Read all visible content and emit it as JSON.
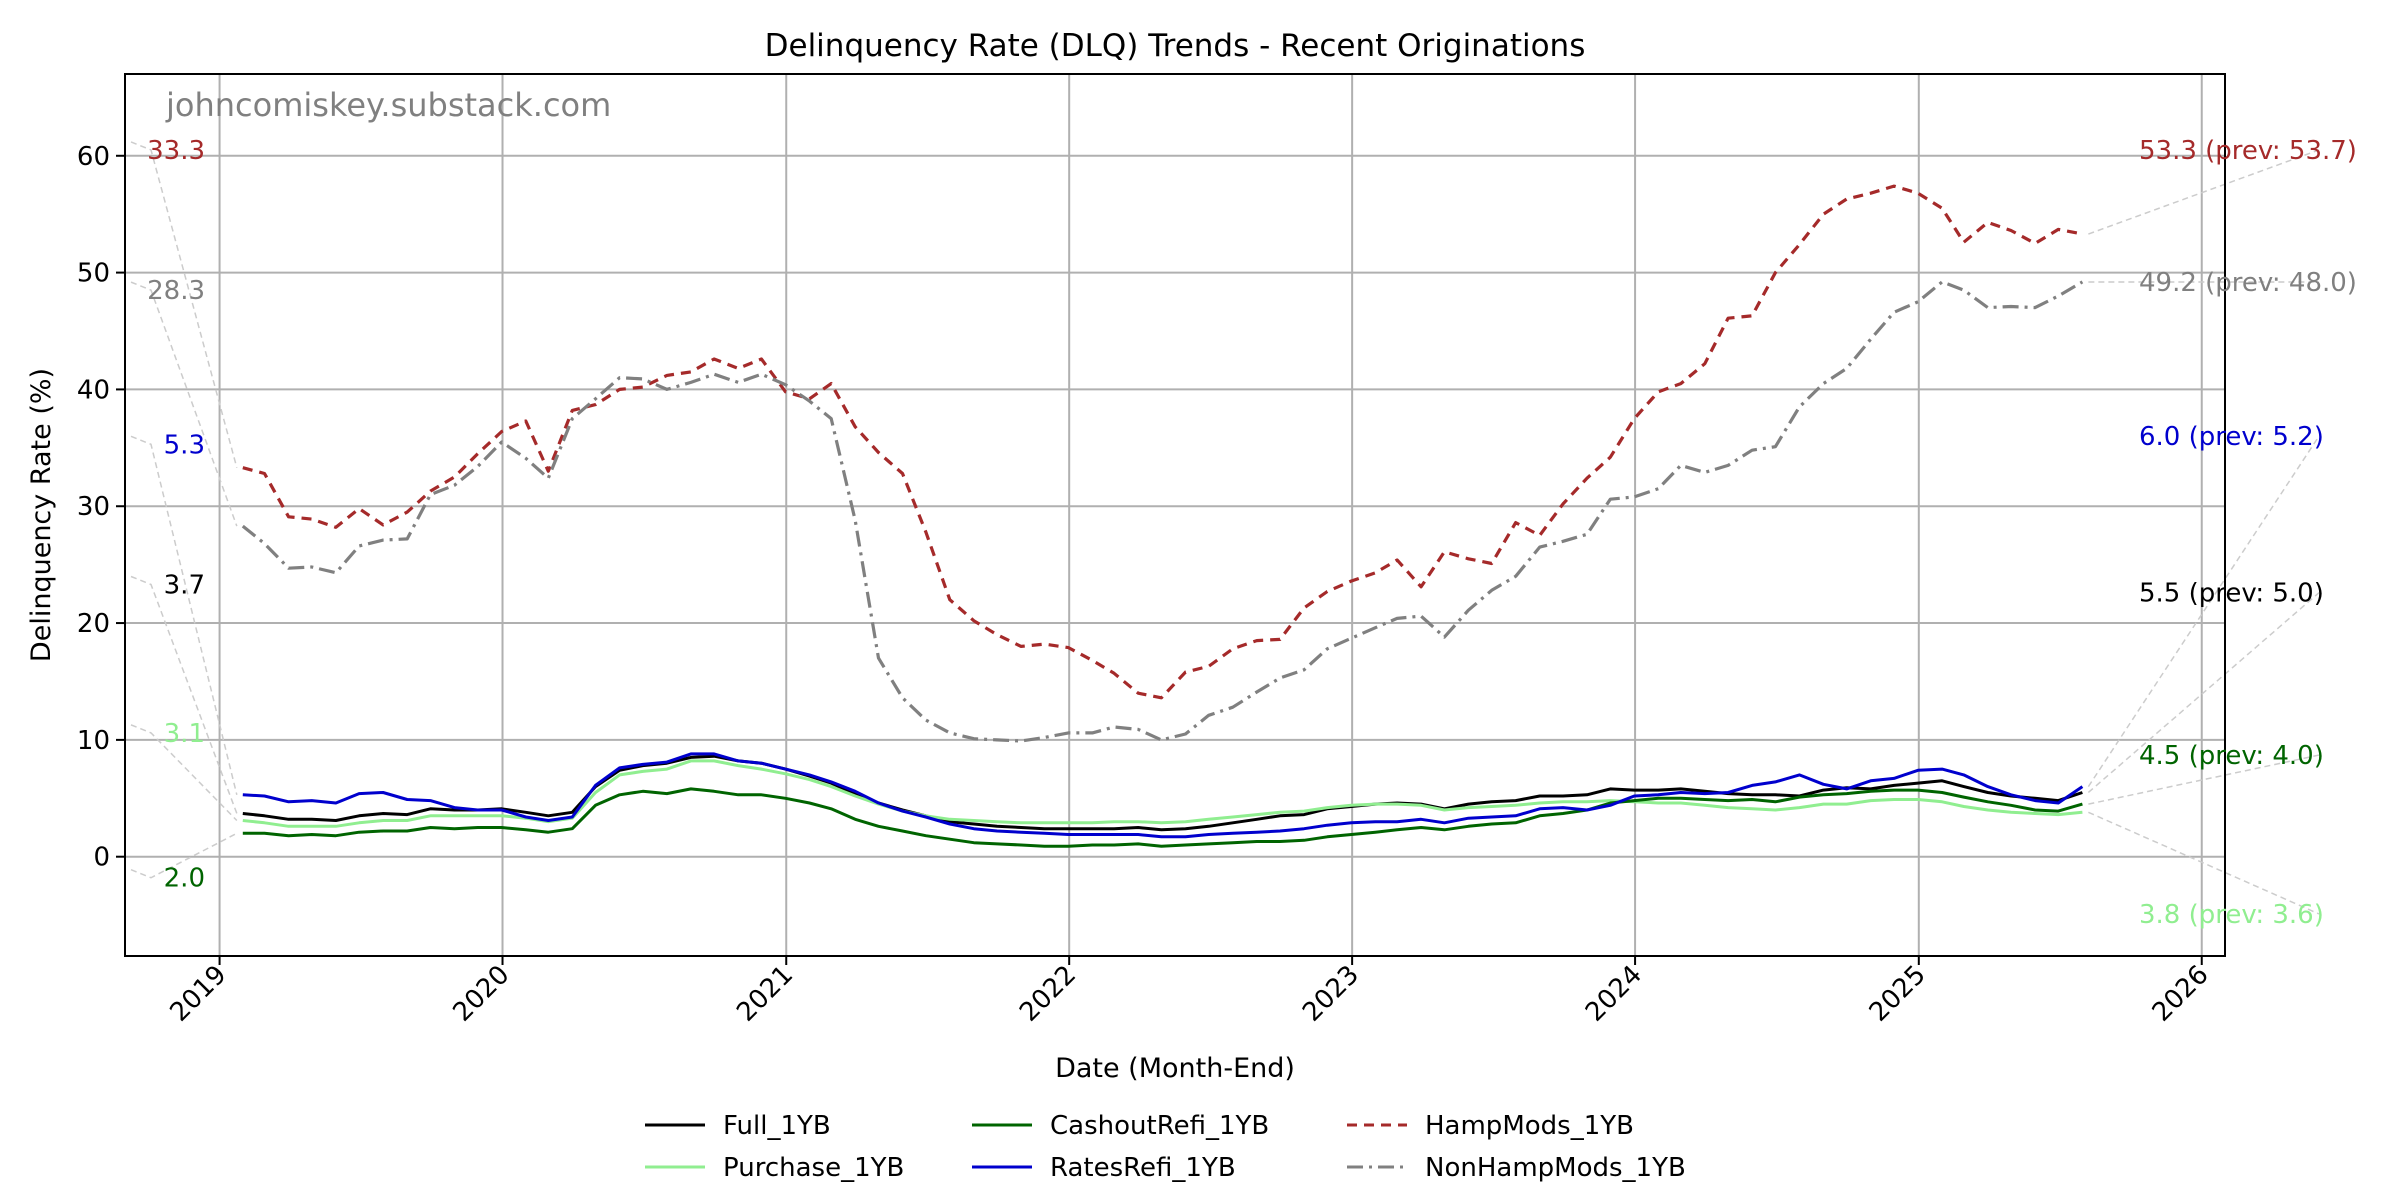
{
  "chart_data": {
    "type": "line",
    "title": "Delinquency Rate (DLQ) Trends - Recent Originations",
    "xlabel": "Date (Month-End)",
    "ylabel": "Delinquency Rate (%)",
    "watermark": "johncomiskey.substack.com",
    "xlim": [
      "2018-09-01",
      "2026-01-31"
    ],
    "ylim": [
      -8.5,
      67
    ],
    "x_ticks": [
      "2019",
      "2020",
      "2021",
      "2022",
      "2023",
      "2024",
      "2025",
      "2026"
    ],
    "y_ticks": [
      0,
      10,
      20,
      30,
      40,
      50,
      60
    ],
    "grid": true,
    "legend_placement": "below",
    "x": [
      "2019-01",
      "2019-02",
      "2019-03",
      "2019-04",
      "2019-05",
      "2019-06",
      "2019-07",
      "2019-08",
      "2019-09",
      "2019-10",
      "2019-11",
      "2019-12",
      "2020-01",
      "2020-02",
      "2020-03",
      "2020-04",
      "2020-05",
      "2020-06",
      "2020-07",
      "2020-08",
      "2020-09",
      "2020-10",
      "2020-11",
      "2020-12",
      "2021-01",
      "2021-02",
      "2021-03",
      "2021-04",
      "2021-05",
      "2021-06",
      "2021-07",
      "2021-08",
      "2021-09",
      "2021-10",
      "2021-11",
      "2021-12",
      "2022-01",
      "2022-02",
      "2022-03",
      "2022-04",
      "2022-05",
      "2022-06",
      "2022-07",
      "2022-08",
      "2022-09",
      "2022-10",
      "2022-11",
      "2022-12",
      "2023-01",
      "2023-02",
      "2023-03",
      "2023-04",
      "2023-05",
      "2023-06",
      "2023-07",
      "2023-08",
      "2023-09",
      "2023-10",
      "2023-11",
      "2023-12",
      "2024-01",
      "2024-02",
      "2024-03",
      "2024-04",
      "2024-05",
      "2024-06",
      "2024-07",
      "2024-08",
      "2024-09",
      "2024-10",
      "2024-11",
      "2024-12",
      "2025-01",
      "2025-02",
      "2025-03",
      "2025-04",
      "2025-05",
      "2025-06",
      "2025-07"
    ],
    "series": [
      {
        "name": "Full_1YB",
        "color": "#000000",
        "dash": "solid",
        "width": 3,
        "values": [
          3.7,
          3.5,
          3.2,
          3.2,
          3.1,
          3.5,
          3.7,
          3.6,
          4.1,
          4.0,
          4.0,
          4.1,
          3.8,
          3.5,
          3.8,
          6.0,
          7.4,
          7.8,
          8.0,
          8.5,
          8.6,
          8.2,
          8.0,
          7.5,
          6.9,
          6.3,
          5.4,
          4.6,
          4.0,
          3.5,
          3.0,
          2.8,
          2.6,
          2.5,
          2.4,
          2.4,
          2.4,
          2.4,
          2.5,
          2.3,
          2.4,
          2.6,
          2.9,
          3.2,
          3.5,
          3.6,
          4.1,
          4.3,
          4.5,
          4.6,
          4.5,
          4.1,
          4.5,
          4.7,
          4.8,
          5.2,
          5.2,
          5.3,
          5.8,
          5.7,
          5.7,
          5.8,
          5.6,
          5.4,
          5.3,
          5.3,
          5.2,
          5.7,
          5.9,
          5.8,
          6.1,
          6.3,
          6.5,
          6.0,
          5.5,
          5.2,
          5.0,
          4.8,
          5.5
        ],
        "start": "3.7",
        "end": "5.5 (prev: 5.0)",
        "start_y": 23.3,
        "end_y": 22.6
      },
      {
        "name": "Purchase_1YB",
        "color": "#90ee90",
        "dash": "solid",
        "width": 3,
        "values": [
          3.1,
          2.9,
          2.6,
          2.6,
          2.6,
          2.9,
          3.1,
          3.1,
          3.5,
          3.5,
          3.5,
          3.5,
          3.3,
          3.0,
          3.3,
          5.5,
          7.0,
          7.3,
          7.5,
          8.2,
          8.2,
          7.8,
          7.5,
          7.1,
          6.6,
          6.0,
          5.2,
          4.5,
          3.9,
          3.5,
          3.2,
          3.1,
          3.0,
          2.9,
          2.9,
          2.9,
          2.9,
          3.0,
          3.0,
          2.9,
          3.0,
          3.2,
          3.4,
          3.6,
          3.8,
          3.9,
          4.2,
          4.4,
          4.5,
          4.5,
          4.4,
          4.0,
          4.2,
          4.3,
          4.4,
          4.6,
          4.7,
          4.7,
          4.8,
          4.7,
          4.6,
          4.6,
          4.4,
          4.2,
          4.1,
          4.0,
          4.2,
          4.5,
          4.5,
          4.8,
          4.9,
          4.9,
          4.7,
          4.3,
          4.0,
          3.8,
          3.7,
          3.6,
          3.8
        ],
        "start": "3.1",
        "end": "3.8 (prev: 3.6)",
        "start_y": 10.6,
        "end_y": -4.9
      },
      {
        "name": "CashoutRefi_1YB",
        "color": "#006400",
        "dash": "solid",
        "width": 3,
        "values": [
          2.0,
          2.0,
          1.8,
          1.9,
          1.8,
          2.1,
          2.2,
          2.2,
          2.5,
          2.4,
          2.5,
          2.5,
          2.3,
          2.1,
          2.4,
          4.4,
          5.3,
          5.6,
          5.4,
          5.8,
          5.6,
          5.3,
          5.3,
          5.0,
          4.6,
          4.1,
          3.2,
          2.6,
          2.2,
          1.8,
          1.5,
          1.2,
          1.1,
          1.0,
          0.9,
          0.9,
          1.0,
          1.0,
          1.1,
          0.9,
          1.0,
          1.1,
          1.2,
          1.3,
          1.3,
          1.4,
          1.7,
          1.9,
          2.1,
          2.3,
          2.5,
          2.3,
          2.6,
          2.8,
          2.9,
          3.5,
          3.7,
          4.0,
          4.6,
          4.8,
          5.0,
          5.0,
          4.9,
          4.8,
          4.9,
          4.7,
          5.1,
          5.3,
          5.4,
          5.6,
          5.7,
          5.7,
          5.5,
          5.1,
          4.7,
          4.4,
          4.0,
          3.9,
          4.5
        ],
        "start": "2.0",
        "end": "4.5 (prev: 4.0)",
        "start_y": -1.8,
        "end_y": 8.7
      },
      {
        "name": "RatesRefi_1YB",
        "color": "#0000cd",
        "dash": "solid",
        "width": 3,
        "values": [
          5.3,
          5.2,
          4.7,
          4.8,
          4.6,
          5.4,
          5.5,
          4.9,
          4.8,
          4.2,
          4.0,
          4.0,
          3.4,
          3.1,
          3.4,
          6.1,
          7.6,
          7.9,
          8.1,
          8.8,
          8.8,
          8.2,
          8.0,
          7.5,
          7.0,
          6.4,
          5.6,
          4.6,
          3.9,
          3.4,
          2.8,
          2.4,
          2.2,
          2.1,
          2.0,
          1.9,
          1.9,
          1.9,
          1.9,
          1.7,
          1.7,
          1.9,
          2.0,
          2.1,
          2.2,
          2.4,
          2.7,
          2.9,
          3.0,
          3.0,
          3.2,
          2.9,
          3.3,
          3.4,
          3.5,
          4.1,
          4.2,
          4.0,
          4.4,
          5.2,
          5.3,
          5.5,
          5.4,
          5.5,
          6.1,
          6.4,
          7.0,
          6.2,
          5.8,
          6.5,
          6.7,
          7.4,
          7.5,
          7.0,
          6.0,
          5.3,
          4.8,
          4.6,
          6.0
        ],
        "start": "5.3",
        "end": "6.0 (prev: 5.2)",
        "start_y": 35.3,
        "end_y": 36.0
      },
      {
        "name": "HampMods_1YB",
        "color": "#a52a2a",
        "dash": "10 7",
        "width": 3.2,
        "values": [
          33.3,
          32.8,
          29.1,
          28.9,
          28.2,
          29.8,
          28.4,
          29.5,
          31.3,
          32.5,
          34.5,
          36.4,
          37.3,
          33.0,
          38.2,
          38.7,
          40.0,
          40.2,
          41.2,
          41.5,
          42.6,
          41.8,
          42.6,
          39.8,
          39.2,
          40.5,
          36.8,
          34.6,
          32.8,
          27.8,
          22.0,
          20.2,
          19.0,
          18.0,
          18.2,
          17.9,
          16.8,
          15.7,
          14.0,
          13.6,
          15.8,
          16.3,
          17.8,
          18.5,
          18.6,
          21.3,
          22.7,
          23.6,
          24.3,
          25.4,
          23.1,
          26.1,
          25.5,
          25.1,
          28.6,
          27.5,
          30.2,
          32.4,
          34.2,
          37.5,
          39.8,
          40.5,
          42.2,
          46.1,
          46.3,
          50.0,
          52.4,
          55.0,
          56.3,
          56.8,
          57.4,
          56.8,
          55.5,
          52.6,
          54.3,
          53.6,
          52.5,
          53.7,
          53.3
        ],
        "start": "33.3",
        "end": "53.3 (prev: 53.7)",
        "start_y": 60.5,
        "end_y": 60.5
      },
      {
        "name": "NonHampMods_1YB",
        "color": "#808080",
        "dash": "16 6 3 6",
        "width": 3.2,
        "values": [
          28.3,
          26.8,
          24.7,
          24.8,
          24.3,
          26.6,
          27.1,
          27.2,
          31.0,
          31.8,
          33.4,
          35.5,
          34.1,
          32.4,
          37.5,
          39.2,
          41.0,
          40.9,
          40.0,
          40.6,
          41.3,
          40.6,
          41.3,
          40.4,
          39.0,
          37.5,
          28.8,
          17.0,
          13.6,
          11.7,
          10.6,
          10.1,
          10.0,
          9.9,
          10.2,
          10.6,
          10.6,
          11.1,
          10.9,
          10.0,
          10.5,
          12.1,
          12.8,
          14.1,
          15.3,
          16.0,
          17.8,
          18.7,
          19.6,
          20.4,
          20.6,
          18.8,
          21.1,
          22.8,
          24.0,
          26.5,
          27.0,
          27.6,
          30.6,
          30.8,
          31.5,
          33.5,
          32.9,
          33.5,
          34.8,
          35.1,
          38.5,
          40.5,
          41.8,
          44.3,
          46.6,
          47.5,
          49.2,
          48.5,
          47.0,
          47.1,
          47.0,
          48.0,
          49.2
        ],
        "start": "28.3",
        "end": "49.2 (prev: 48.0)",
        "start_y": 48.5,
        "end_y": 49.2
      }
    ]
  }
}
